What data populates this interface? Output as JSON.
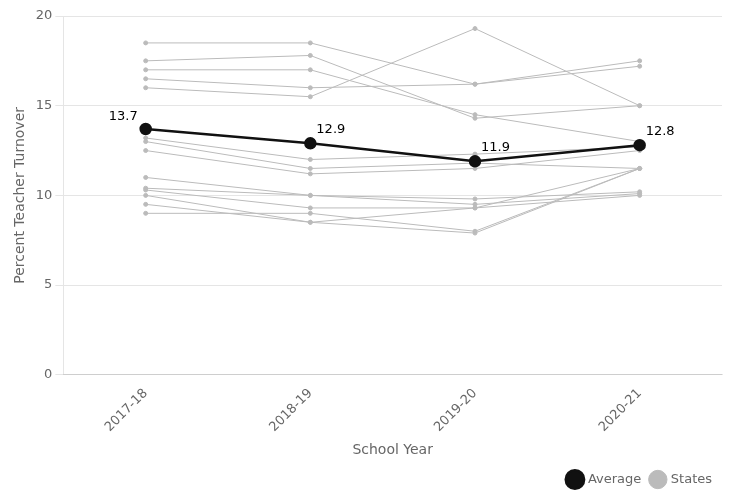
{
  "chart_data": {
    "type": "line",
    "categories": [
      "2017-18",
      "2018-19",
      "2019-20",
      "2020-21"
    ],
    "x_label": "School Year",
    "y_label": "Percent Teacher Turnover",
    "series": [
      {
        "name": "States",
        "color": "#bbbbbb",
        "marker": "circle",
        "values": [
          18.5,
          18.5,
          16.2,
          17.2
        ]
      },
      {
        "name": "States",
        "color": "#bbbbbb",
        "marker": "circle",
        "values": [
          17.5,
          17.8,
          14.3,
          15.0
        ]
      },
      {
        "name": "States",
        "color": "#bbbbbb",
        "marker": "circle",
        "values": [
          17.0,
          17.0,
          14.5,
          13.0
        ]
      },
      {
        "name": "States",
        "color": "#bbbbbb",
        "marker": "circle",
        "values": [
          16.5,
          16.0,
          16.2,
          17.5
        ]
      },
      {
        "name": "States",
        "color": "#bbbbbb",
        "marker": "circle",
        "values": [
          16.0,
          15.5,
          19.3,
          15.0
        ]
      },
      {
        "name": "States",
        "color": "#bbbbbb",
        "marker": "circle",
        "values": [
          13.2,
          12.0,
          12.3,
          12.7
        ]
      },
      {
        "name": "States",
        "color": "#bbbbbb",
        "marker": "circle",
        "values": [
          13.0,
          11.5,
          11.8,
          11.5
        ]
      },
      {
        "name": "States",
        "color": "#bbbbbb",
        "marker": "circle",
        "values": [
          12.5,
          11.2,
          11.5,
          12.5
        ]
      },
      {
        "name": "States",
        "color": "#bbbbbb",
        "marker": "circle",
        "values": [
          11.0,
          10.0,
          9.8,
          10.2
        ]
      },
      {
        "name": "States",
        "color": "#bbbbbb",
        "marker": "circle",
        "values": [
          10.4,
          10.0,
          9.5,
          10.1
        ]
      },
      {
        "name": "States",
        "color": "#bbbbbb",
        "marker": "circle",
        "values": [
          10.3,
          9.3,
          9.3,
          10.0
        ]
      },
      {
        "name": "States",
        "color": "#bbbbbb",
        "marker": "circle",
        "values": [
          10.0,
          8.5,
          7.9,
          11.5
        ]
      },
      {
        "name": "States",
        "color": "#bbbbbb",
        "marker": "circle",
        "values": [
          9.5,
          8.5,
          9.3,
          11.5
        ]
      },
      {
        "name": "States",
        "color": "#bbbbbb",
        "marker": "circle",
        "values": [
          9.0,
          9.0,
          8.0,
          11.5
        ]
      },
      {
        "name": "Average",
        "color": "#111111",
        "marker": "circle",
        "values": [
          13.7,
          12.9,
          11.9,
          12.8
        ]
      }
    ],
    "annotations": [
      {
        "text": "13.7",
        "x": "2017-18",
        "y": 13.7
      },
      {
        "text": "12.9",
        "x": "2018-19",
        "y": 12.9
      },
      {
        "text": "11.9",
        "x": "2019-20",
        "y": 11.9
      },
      {
        "text": "12.8",
        "x": "2020-21",
        "y": 12.8
      }
    ],
    "ylim": [
      0,
      20
    ],
    "yticks": [
      0,
      5,
      10,
      15,
      20
    ],
    "grid": "y",
    "legend": "lower right"
  }
}
